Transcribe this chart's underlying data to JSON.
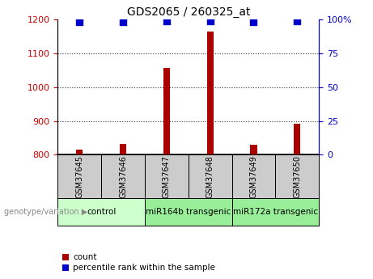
{
  "title": "GDS2065 / 260325_at",
  "samples": [
    "GSM37645",
    "GSM37646",
    "GSM37647",
    "GSM37648",
    "GSM37649",
    "GSM37650"
  ],
  "count_values": [
    815,
    833,
    1057,
    1165,
    830,
    893
  ],
  "percentile_values": [
    98,
    98,
    99,
    99,
    98,
    99
  ],
  "ylim_left": [
    800,
    1200
  ],
  "ylim_right": [
    0,
    100
  ],
  "yticks_left": [
    800,
    900,
    1000,
    1100,
    1200
  ],
  "yticks_right": [
    0,
    25,
    50,
    75,
    100
  ],
  "ytick_right_labels": [
    "0",
    "25",
    "50",
    "75",
    "100%"
  ],
  "group_spans": [
    {
      "label": "control",
      "start": 0,
      "end": 2,
      "color": "#ccffcc"
    },
    {
      "label": "miR164b transgenic",
      "start": 2,
      "end": 4,
      "color": "#99ee99"
    },
    {
      "label": "miR172a transgenic",
      "start": 4,
      "end": 6,
      "color": "#99ee99"
    }
  ],
  "bar_color": "#aa0000",
  "dot_color": "#0000cc",
  "tick_color_left": "#cc0000",
  "tick_color_right": "#0000cc",
  "sample_box_color": "#cccccc",
  "genotype_label": "genotype/variation",
  "legend_count_label": "count",
  "legend_percentile_label": "percentile rank within the sample",
  "bar_width": 0.15,
  "dot_size": 40,
  "grid_style": "dotted",
  "grid_color": "#000000",
  "grid_alpha": 0.8,
  "grid_lw": 0.8
}
